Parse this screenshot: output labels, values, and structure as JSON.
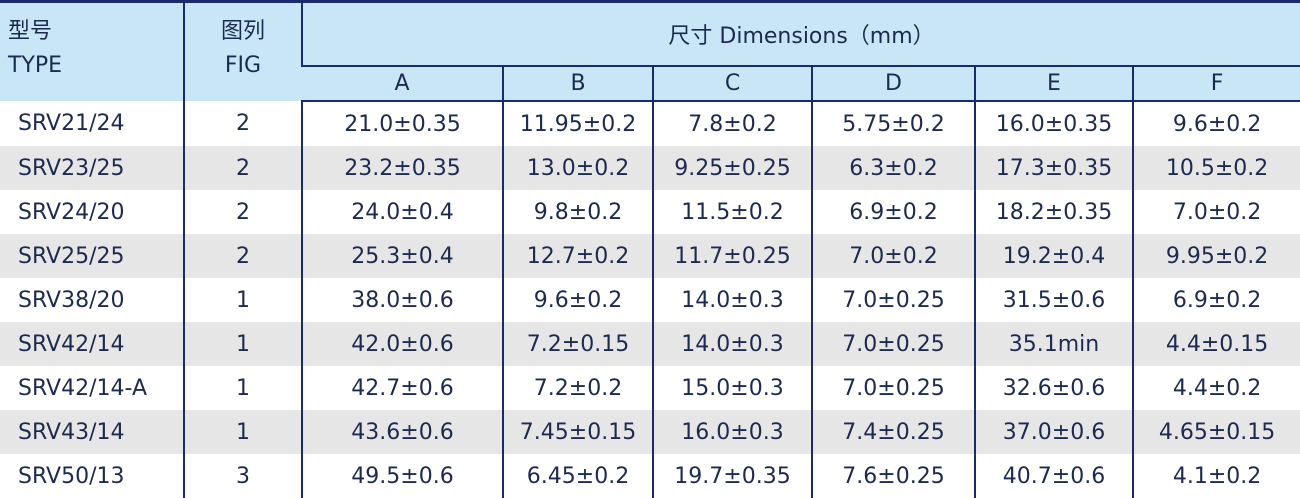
{
  "header": {
    "type_cn": "型号",
    "type_en": "TYPE",
    "fig_cn": "图列",
    "fig_en": "FIG",
    "dimensions": "尺寸 Dimensions（mm）",
    "columns": [
      "A",
      "B",
      "C",
      "D",
      "E",
      "F"
    ]
  },
  "colors": {
    "header_bg": "#c9e6f7",
    "border": "#1b2a6b",
    "stripe": "#e7e6e7",
    "text": "#1d2a4f"
  },
  "rows": [
    [
      "SRV21/24",
      "2",
      "21.0±0.35",
      "11.95±0.2",
      "7.8±0.2",
      "5.75±0.2",
      "16.0±0.35",
      "9.6±0.2"
    ],
    [
      "SRV23/25",
      "2",
      "23.2±0.35",
      "13.0±0.2",
      "9.25±0.25",
      "6.3±0.2",
      "17.3±0.35",
      "10.5±0.2"
    ],
    [
      "SRV24/20",
      "2",
      "24.0±0.4",
      "9.8±0.2",
      "11.5±0.2",
      "6.9±0.2",
      "18.2±0.35",
      "7.0±0.2"
    ],
    [
      "SRV25/25",
      "2",
      "25.3±0.4",
      "12.7±0.2",
      "11.7±0.25",
      "7.0±0.2",
      "19.2±0.4",
      "9.95±0.2"
    ],
    [
      "SRV38/20",
      "1",
      "38.0±0.6",
      "9.6±0.2",
      "14.0±0.3",
      "7.0±0.25",
      "31.5±0.6",
      "6.9±0.2"
    ],
    [
      "SRV42/14",
      "1",
      "42.0±0.6",
      "7.2±0.15",
      "14.0±0.3",
      "7.0±0.25",
      "35.1min",
      "4.4±0.15"
    ],
    [
      "SRV42/14-A",
      "1",
      "42.7±0.6",
      "7.2±0.2",
      "15.0±0.3",
      "7.0±0.25",
      "32.6±0.6",
      "4.4±0.2"
    ],
    [
      "SRV43/14",
      "1",
      "43.6±0.6",
      "7.45±0.15",
      "16.0±0.3",
      "7.4±0.25",
      "37.0±0.6",
      "4.65±0.15"
    ],
    [
      "SRV50/13",
      "3",
      "49.5±0.6",
      "6.45±0.2",
      "19.7±0.35",
      "7.6±0.25",
      "40.7±0.6",
      "4.1±0.2"
    ]
  ]
}
